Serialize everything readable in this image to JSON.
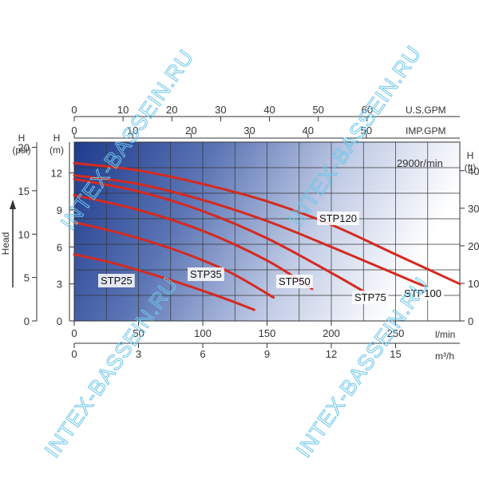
{
  "chart_data": {
    "type": "line",
    "speed_label": "2900r/min",
    "watermark": "INTEX-BASSEIN.RU",
    "x_axes": {
      "lpm": {
        "unit": "l/min",
        "ticks": [
          "0",
          "50",
          "100",
          "150",
          "200",
          "250"
        ],
        "range": [
          0,
          300
        ]
      },
      "m3h": {
        "unit": "m³/h",
        "ticks": [
          "0",
          "3",
          "6",
          "9",
          "12",
          "15"
        ],
        "range": [
          0,
          18
        ]
      },
      "us_gpm": {
        "unit": "U.S.GPM",
        "ticks": [
          "0",
          "10",
          "20",
          "30",
          "40",
          "50",
          "60"
        ],
        "range": [
          0,
          79
        ]
      },
      "imp_gpm": {
        "unit": "IMP.GPM",
        "ticks": [
          "0",
          "10",
          "20",
          "30",
          "40",
          "50"
        ],
        "range": [
          0,
          66
        ]
      }
    },
    "y_axes": {
      "m": {
        "unit": "H\n(m)",
        "ticks": [
          "0",
          "3",
          "6",
          "9",
          "12"
        ],
        "range": [
          0,
          14.5
        ]
      },
      "psi": {
        "unit": "H\n(psi)",
        "ticks": [
          "0",
          "5",
          "10",
          "15",
          "20"
        ],
        "range": [
          0,
          20.6
        ]
      },
      "ft": {
        "unit": "H\n(ft)",
        "ticks": [
          "0",
          "10",
          "20",
          "30",
          "40"
        ],
        "range": [
          0,
          47.6
        ]
      },
      "head_label": "Head"
    },
    "grid": true,
    "series": [
      {
        "name": "STP25",
        "x": [
          0,
          30,
          60,
          90,
          120,
          140
        ],
        "y": [
          5.4,
          4.7,
          3.8,
          2.8,
          1.7,
          0.9
        ]
      },
      {
        "name": "STP35",
        "x": [
          0,
          40,
          80,
          120,
          155
        ],
        "y": [
          8.0,
          7.0,
          5.7,
          4.0,
          1.9
        ]
      },
      {
        "name": "STP50",
        "x": [
          0,
          50,
          100,
          150,
          185
        ],
        "y": [
          10.2,
          9.0,
          7.3,
          4.9,
          2.6
        ]
      },
      {
        "name": "STP75",
        "x": [
          0,
          50,
          100,
          150,
          200,
          225
        ],
        "y": [
          11.5,
          10.5,
          8.9,
          6.7,
          3.9,
          2.4
        ]
      },
      {
        "name": "STP100",
        "x": [
          0,
          50,
          100,
          150,
          200,
          250,
          275
        ],
        "y": [
          11.8,
          11.1,
          9.8,
          8.1,
          6.0,
          3.8,
          2.7
        ]
      },
      {
        "name": "STP120",
        "x": [
          0,
          50,
          100,
          150,
          200,
          250,
          300
        ],
        "y": [
          12.8,
          12.2,
          11.1,
          9.7,
          7.8,
          5.4,
          3.0
        ]
      }
    ]
  }
}
